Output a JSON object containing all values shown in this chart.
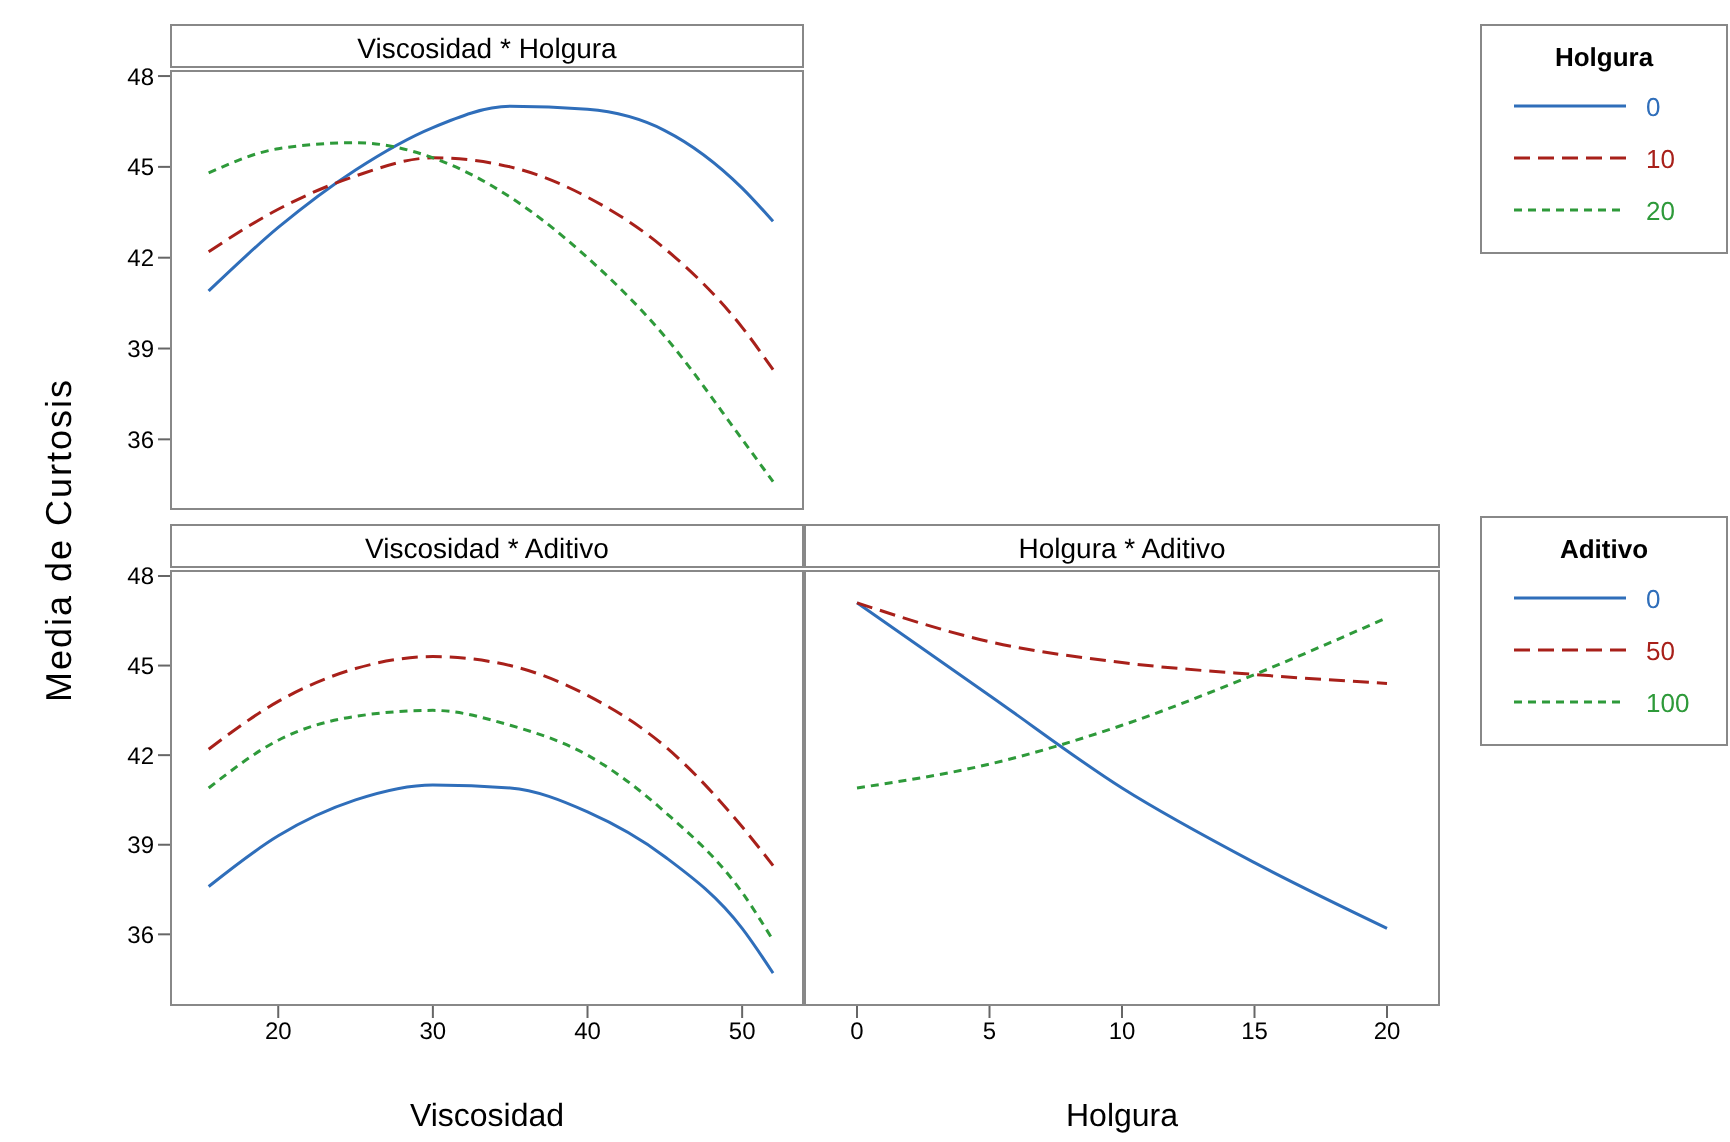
{
  "chart_data": [
    {
      "type": "line",
      "title": "Viscosidad * Holgura",
      "legend_title": "Holgura",
      "legend": "right",
      "marker": "none",
      "tick_labels": "y",
      "x": [
        15.5,
        20,
        25,
        30,
        35,
        40,
        45,
        50,
        52
      ],
      "xlim": [
        13,
        54
      ],
      "xticks": [
        20,
        30,
        40,
        50
      ],
      "ylim": [
        33.6,
        48.2
      ],
      "yticks": [
        36,
        39,
        42,
        45,
        48
      ],
      "series": [
        {
          "name": "0",
          "color": "#2f6eba",
          "line_style": "solid",
          "values": [
            40.9,
            43.0,
            44.9,
            46.3,
            47.0,
            46.9,
            46.2,
            44.3,
            43.2
          ]
        },
        {
          "name": "10",
          "color": "#a8201a",
          "line_style": "dashed",
          "values": [
            42.2,
            43.6,
            44.7,
            45.3,
            45.0,
            44.0,
            42.3,
            39.7,
            38.3
          ]
        },
        {
          "name": "20",
          "color": "#2e9a3a",
          "line_style": "dotted",
          "values": [
            44.8,
            45.6,
            45.8,
            45.3,
            44.0,
            42.0,
            39.4,
            36.0,
            34.6
          ]
        }
      ]
    },
    {
      "type": "line",
      "title": "Viscosidad * Aditivo",
      "xlabel": "Viscosidad",
      "ylabel": "Media de Curtosis",
      "marker": "none",
      "x": [
        15.5,
        20,
        25,
        30,
        35,
        40,
        45,
        50,
        52
      ],
      "xlim": [
        13,
        54
      ],
      "xticks": [
        20,
        30,
        40,
        50
      ],
      "ylim": [
        33.6,
        48.2
      ],
      "yticks": [
        36,
        39,
        42,
        45,
        48
      ],
      "series": [
        {
          "color": "#2f6eba",
          "line_style": "solid",
          "values": [
            37.6,
            39.3,
            40.5,
            41.0,
            40.9,
            40.1,
            38.6,
            36.2,
            34.7
          ]
        },
        {
          "color": "#a8201a",
          "line_style": "dashed",
          "values": [
            42.2,
            43.8,
            44.9,
            45.3,
            45.0,
            44.0,
            42.3,
            39.6,
            38.3
          ]
        },
        {
          "color": "#2e9a3a",
          "line_style": "dotted",
          "values": [
            40.9,
            42.5,
            43.3,
            43.5,
            43.0,
            42.0,
            40.1,
            37.4,
            35.8
          ]
        }
      ]
    },
    {
      "type": "line",
      "title": "Holgura * Aditivo",
      "xlabel": "Holgura",
      "legend_title": "Aditivo",
      "legend": "right",
      "marker": "none",
      "tick_labels": "x",
      "x": [
        0,
        5,
        10,
        15,
        20
      ],
      "xlim": [
        -2,
        22
      ],
      "xticks": [
        0,
        5,
        10,
        15,
        20
      ],
      "ylim": [
        33.6,
        48.2
      ],
      "yticks": [
        36,
        39,
        42,
        45,
        48
      ],
      "series": [
        {
          "name": "0",
          "color": "#2f6eba",
          "line_style": "solid",
          "values": [
            47.1,
            44.0,
            40.9,
            38.4,
            36.2
          ]
        },
        {
          "name": "50",
          "color": "#a8201a",
          "line_style": "dashed",
          "values": [
            47.1,
            45.8,
            45.1,
            44.7,
            44.4
          ]
        },
        {
          "name": "100",
          "color": "#2e9a3a",
          "line_style": "dotted",
          "values": [
            40.9,
            41.7,
            43.0,
            44.7,
            46.6
          ]
        }
      ]
    }
  ]
}
